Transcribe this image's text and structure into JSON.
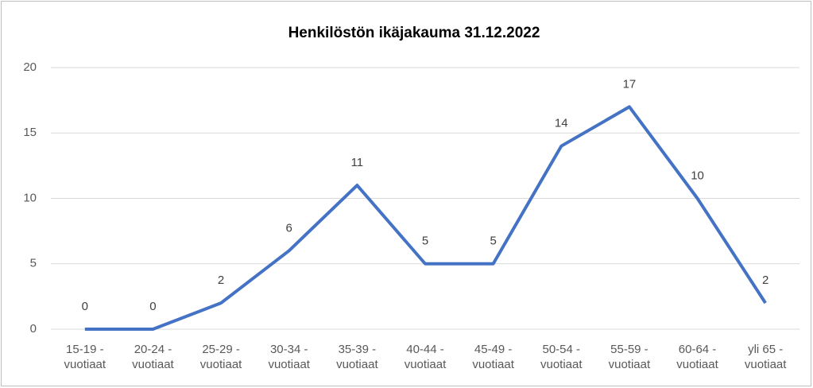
{
  "chart_data": {
    "type": "line",
    "title": "Henkilöstön ikäjakauma 31.12.2022",
    "categories": [
      "15-19 - vuotiaat",
      "20-24 - vuotiaat",
      "25-29 - vuotiaat",
      "30-34 - vuotiaat",
      "35-39 - vuotiaat",
      "40-44 - vuotiaat",
      "45-49 - vuotiaat",
      "50-54 - vuotiaat",
      "55-59 - vuotiaat",
      "60-64 - vuotiaat",
      "yli 65 - vuotiaat"
    ],
    "values": [
      0,
      0,
      2,
      6,
      11,
      5,
      5,
      14,
      17,
      10,
      2
    ],
    "color": "#4472c4",
    "ylim": [
      0,
      20
    ],
    "yticks": [
      0,
      5,
      10,
      15,
      20
    ],
    "grid": true
  }
}
